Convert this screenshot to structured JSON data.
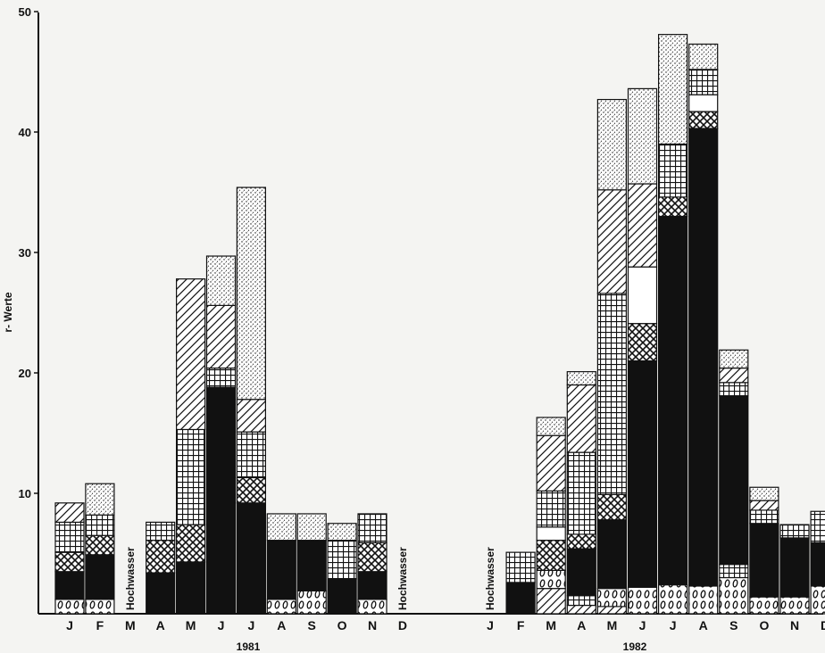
{
  "chart_data": {
    "type": "bar",
    "stacked": true,
    "ylabel": "r- Werte",
    "ylim": [
      0,
      50
    ],
    "yticks": [
      10,
      20,
      30,
      40,
      50
    ],
    "grid": false,
    "legend": "none",
    "colors": {
      "ink": "#111111",
      "paper": "#f4f4f2"
    },
    "layer_patterns": [
      "egg-pattern",
      "solid-black",
      "crosshatch-x",
      "grid-squares",
      "diagonal-hatch",
      "blank-white",
      "stipple-dots"
    ],
    "groups": [
      {
        "year": "1981",
        "bars": [
          {
            "month": "J",
            "segments": [
              {
                "pattern": "egg-pattern",
                "value": 1.2
              },
              {
                "pattern": "solid-black",
                "value": 2.3
              },
              {
                "pattern": "crosshatch-x",
                "value": 1.6
              },
              {
                "pattern": "grid-squares",
                "value": 2.5
              },
              {
                "pattern": "diagonal-hatch",
                "value": 1.6
              }
            ]
          },
          {
            "month": "F",
            "segments": [
              {
                "pattern": "egg-pattern",
                "value": 1.2
              },
              {
                "pattern": "solid-black",
                "value": 3.7
              },
              {
                "pattern": "crosshatch-x",
                "value": 1.6
              },
              {
                "pattern": "grid-squares",
                "value": 1.7
              },
              {
                "pattern": "stipple-dots",
                "value": 2.6
              }
            ]
          },
          {
            "month": "M",
            "note": "Hochwasser",
            "segments": []
          },
          {
            "month": "A",
            "segments": [
              {
                "pattern": "solid-black",
                "value": 3.4
              },
              {
                "pattern": "crosshatch-x",
                "value": 2.7
              },
              {
                "pattern": "grid-squares",
                "value": 1.5
              }
            ]
          },
          {
            "month": "M",
            "segments": [
              {
                "pattern": "solid-black",
                "value": 4.3
              },
              {
                "pattern": "crosshatch-x",
                "value": 3.1
              },
              {
                "pattern": "grid-squares",
                "value": 7.9
              },
              {
                "pattern": "diagonal-hatch",
                "value": 12.5
              }
            ]
          },
          {
            "month": "J",
            "segments": [
              {
                "pattern": "solid-black",
                "value": 18.8
              },
              {
                "pattern": "grid-squares",
                "value": 1.6
              },
              {
                "pattern": "diagonal-hatch",
                "value": 5.2
              },
              {
                "pattern": "stipple-dots",
                "value": 4.1
              }
            ]
          },
          {
            "month": "J",
            "segments": [
              {
                "pattern": "solid-black",
                "value": 9.2
              },
              {
                "pattern": "crosshatch-x",
                "value": 2.1
              },
              {
                "pattern": "grid-squares",
                "value": 3.8
              },
              {
                "pattern": "diagonal-hatch",
                "value": 2.7
              },
              {
                "pattern": "stipple-dots",
                "value": 17.6
              }
            ]
          },
          {
            "month": "A",
            "segments": [
              {
                "pattern": "egg-pattern",
                "value": 1.2
              },
              {
                "pattern": "solid-black",
                "value": 4.9
              },
              {
                "pattern": "stipple-dots",
                "value": 2.2
              }
            ]
          },
          {
            "month": "S",
            "segments": [
              {
                "pattern": "egg-pattern",
                "value": 1.9
              },
              {
                "pattern": "solid-black",
                "value": 4.2
              },
              {
                "pattern": "stipple-dots",
                "value": 2.2
              }
            ]
          },
          {
            "month": "O",
            "segments": [
              {
                "pattern": "solid-black",
                "value": 2.9
              },
              {
                "pattern": "grid-squares",
                "value": 3.2
              },
              {
                "pattern": "stipple-dots",
                "value": 1.4
              }
            ]
          },
          {
            "month": "N",
            "segments": [
              {
                "pattern": "egg-pattern",
                "value": 1.2
              },
              {
                "pattern": "solid-black",
                "value": 2.3
              },
              {
                "pattern": "crosshatch-x",
                "value": 2.4
              },
              {
                "pattern": "grid-squares",
                "value": 2.4
              }
            ]
          },
          {
            "month": "D",
            "note": "Hochwasser",
            "segments": []
          }
        ]
      },
      {
        "year": "1982",
        "bars": [
          {
            "month": "J",
            "note": "Hochwasser",
            "segments": []
          },
          {
            "month": "F",
            "segments": [
              {
                "pattern": "solid-black",
                "value": 2.6
              },
              {
                "pattern": "grid-squares",
                "value": 2.5
              }
            ]
          },
          {
            "month": "M",
            "segments": [
              {
                "pattern": "diagonal-hatch",
                "value": 2.1
              },
              {
                "pattern": "egg-pattern",
                "value": 1.5
              },
              {
                "pattern": "crosshatch-x",
                "value": 2.5
              },
              {
                "pattern": "blank-white",
                "value": 1.1
              },
              {
                "pattern": "grid-squares",
                "value": 3.0
              },
              {
                "pattern": "diagonal-hatch",
                "value": 4.6
              },
              {
                "pattern": "stipple-dots",
                "value": 1.5
              }
            ]
          },
          {
            "month": "A",
            "segments": [
              {
                "pattern": "diagonal-hatch",
                "value": 0.7
              },
              {
                "pattern": "grid-squares",
                "value": 0.8
              },
              {
                "pattern": "solid-black",
                "value": 3.9
              },
              {
                "pattern": "crosshatch-x",
                "value": 1.2
              },
              {
                "pattern": "grid-squares",
                "value": 6.8
              },
              {
                "pattern": "diagonal-hatch",
                "value": 5.6
              },
              {
                "pattern": "stipple-dots",
                "value": 1.1
              }
            ]
          },
          {
            "month": "M",
            "segments": [
              {
                "pattern": "diagonal-hatch",
                "value": 0.6
              },
              {
                "pattern": "egg-pattern",
                "value": 1.5
              },
              {
                "pattern": "solid-black",
                "value": 5.7
              },
              {
                "pattern": "crosshatch-x",
                "value": 2.1
              },
              {
                "pattern": "grid-squares",
                "value": 16.7
              },
              {
                "pattern": "diagonal-hatch",
                "value": 8.6
              },
              {
                "pattern": "stipple-dots",
                "value": 7.5
              }
            ]
          },
          {
            "month": "J",
            "segments": [
              {
                "pattern": "egg-pattern",
                "value": 2.2
              },
              {
                "pattern": "solid-black",
                "value": 18.8
              },
              {
                "pattern": "crosshatch-x",
                "value": 3.1
              },
              {
                "pattern": "blank-white",
                "value": 4.7
              },
              {
                "pattern": "diagonal-hatch",
                "value": 6.9
              },
              {
                "pattern": "stipple-dots",
                "value": 7.9
              }
            ]
          },
          {
            "month": "J",
            "segments": [
              {
                "pattern": "egg-pattern",
                "value": 2.4
              },
              {
                "pattern": "solid-black",
                "value": 30.6
              },
              {
                "pattern": "crosshatch-x",
                "value": 1.6
              },
              {
                "pattern": "grid-squares",
                "value": 4.4
              },
              {
                "pattern": "stipple-dots",
                "value": 9.1
              }
            ]
          },
          {
            "month": "A",
            "segments": [
              {
                "pattern": "egg-pattern",
                "value": 2.3
              },
              {
                "pattern": "solid-black",
                "value": 38.0
              },
              {
                "pattern": "crosshatch-x",
                "value": 1.4
              },
              {
                "pattern": "blank-white",
                "value": 1.4
              },
              {
                "pattern": "grid-squares",
                "value": 2.1
              },
              {
                "pattern": "stipple-dots",
                "value": 2.1
              }
            ]
          },
          {
            "month": "S",
            "segments": [
              {
                "pattern": "egg-pattern",
                "value": 3.0
              },
              {
                "pattern": "grid-squares",
                "value": 1.1
              },
              {
                "pattern": "solid-black",
                "value": 14.0
              },
              {
                "pattern": "grid-squares",
                "value": 1.1
              },
              {
                "pattern": "diagonal-hatch",
                "value": 1.2
              },
              {
                "pattern": "stipple-dots",
                "value": 1.5
              }
            ]
          },
          {
            "month": "O",
            "segments": [
              {
                "pattern": "egg-pattern",
                "value": 1.4
              },
              {
                "pattern": "solid-black",
                "value": 6.1
              },
              {
                "pattern": "grid-squares",
                "value": 1.1
              },
              {
                "pattern": "diagonal-hatch",
                "value": 0.8
              },
              {
                "pattern": "stipple-dots",
                "value": 1.1
              }
            ]
          },
          {
            "month": "N",
            "segments": [
              {
                "pattern": "egg-pattern",
                "value": 1.4
              },
              {
                "pattern": "solid-black",
                "value": 4.9
              },
              {
                "pattern": "grid-squares",
                "value": 1.1
              }
            ]
          },
          {
            "month": "D",
            "segments": [
              {
                "pattern": "egg-pattern",
                "value": 2.3
              },
              {
                "pattern": "solid-black",
                "value": 3.6
              },
              {
                "pattern": "grid-squares",
                "value": 2.6
              }
            ]
          }
        ]
      }
    ]
  }
}
